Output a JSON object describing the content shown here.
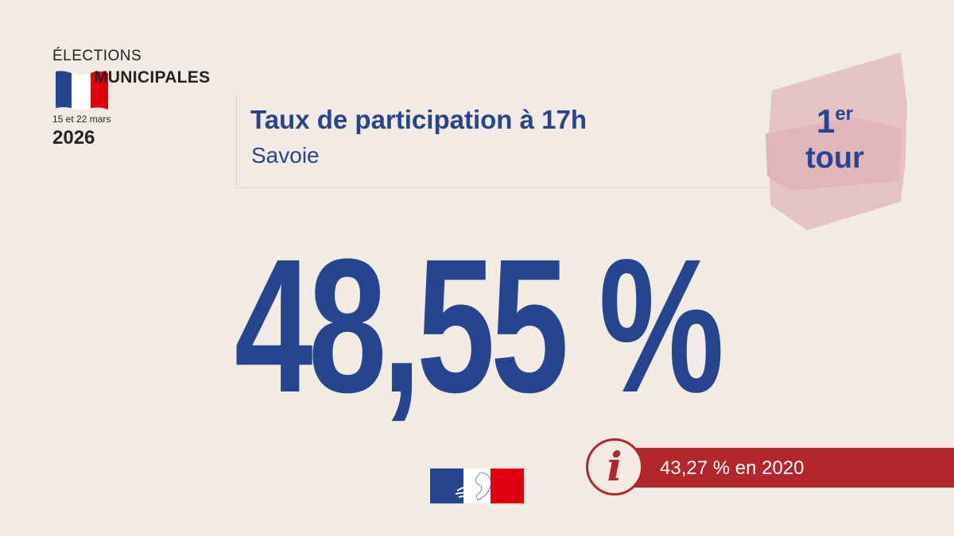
{
  "logo": {
    "line1": "ÉLECTIONS",
    "line2": "MUNICIPALES",
    "dates": "15 et 22 mars",
    "year": "2026",
    "icon": "french-flag-icon"
  },
  "header": {
    "title": "Taux de participation à 17h",
    "subtitle": "Savoie"
  },
  "badge": {
    "number": "1",
    "superscript": "er",
    "word": "tour"
  },
  "main": {
    "value": "48,55 %"
  },
  "info": {
    "icon": "info-icon",
    "glyph": "i",
    "text": "43,27 % en 2020"
  },
  "footer": {
    "icon": "marianne-logo"
  },
  "colors": {
    "background": "#f1ebe3",
    "primary_blue": "#27458f",
    "accent_red": "#b2262c",
    "badge_pink": "#e6c3c3"
  }
}
